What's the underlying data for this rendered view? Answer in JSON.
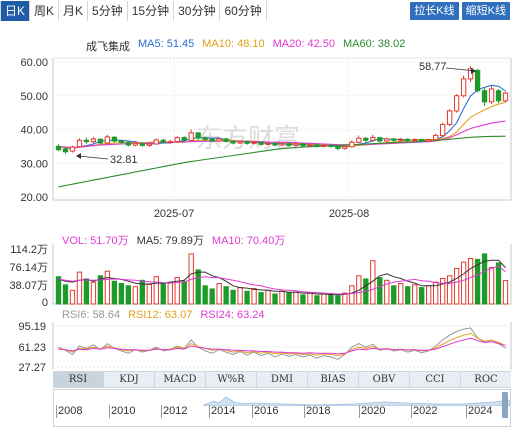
{
  "toolbar": {
    "periods": [
      {
        "label": "日K",
        "active": true
      },
      {
        "label": "周K",
        "active": false
      },
      {
        "label": "月K",
        "active": false
      },
      {
        "label": "5分钟",
        "active": false
      },
      {
        "label": "15分钟",
        "active": false
      },
      {
        "label": "30分钟",
        "active": false
      },
      {
        "label": "60分钟",
        "active": false
      }
    ],
    "right_buttons": [
      "拉长K线",
      "缩短K线"
    ]
  },
  "watermark": "东方财富",
  "main_legend": {
    "stock_name": "成飞集成",
    "items": [
      {
        "label": "MA5: 51.45",
        "color": "#2f6fd6"
      },
      {
        "label": "MA10: 48.10",
        "color": "#e0a11b"
      },
      {
        "label": "MA20: 42.50",
        "color": "#e03ad6"
      },
      {
        "label": "MA60: 38.02",
        "color": "#2e8b2e"
      }
    ]
  },
  "main_axis": {
    "y_ticks": [
      "60.00",
      "50.00",
      "40.00",
      "30.00",
      "20.00"
    ],
    "x_ticks": [
      "2025-07",
      "2025-08"
    ]
  },
  "annotations": {
    "high": "58.77",
    "low": "32.81"
  },
  "volume_legend": {
    "items": [
      {
        "label": "VOL: 51.70万",
        "color": "#e03ad6"
      },
      {
        "label": "MA5: 79.89万",
        "color": "#333333"
      },
      {
        "label": "MA10: 70.40万",
        "color": "#e03ad6"
      }
    ],
    "y_ticks": [
      "114.2万",
      "76.14万",
      "38.07万",
      "0"
    ]
  },
  "rsi_legend": {
    "items": [
      {
        "label": "RSI6: 58.64",
        "color": "#999999"
      },
      {
        "label": "RSI12: 63.07",
        "color": "#e0a11b"
      },
      {
        "label": "RSI24: 63.24",
        "color": "#e03ad6"
      }
    ],
    "y_ticks": [
      "95.19",
      "61.23",
      "27.27"
    ]
  },
  "indicator_tabs": [
    {
      "label": "RSI",
      "active": true
    },
    {
      "label": "KDJ",
      "active": false
    },
    {
      "label": "MACD",
      "active": false
    },
    {
      "label": "W%R",
      "active": false
    },
    {
      "label": "DMI",
      "active": false
    },
    {
      "label": "BIAS",
      "active": false
    },
    {
      "label": "OBV",
      "active": false
    },
    {
      "label": "CCI",
      "active": false
    },
    {
      "label": "ROC",
      "active": false
    }
  ],
  "timeline": {
    "years": [
      "2008",
      "2010",
      "2012",
      "2014",
      "2016",
      "2018",
      "2020",
      "2022",
      "2024"
    ]
  },
  "chart_data": {
    "type": "candlestick",
    "title": "成飞集成",
    "ylim": [
      20,
      60
    ],
    "x_ticks": [
      "2025-07",
      "2025-08"
    ],
    "candles": [
      [
        35.0,
        34.0,
        35.6,
        33.6
      ],
      [
        34.2,
        33.4,
        34.8,
        32.81
      ],
      [
        33.6,
        34.8,
        35.2,
        33.2
      ],
      [
        34.9,
        36.8,
        37.4,
        34.6
      ],
      [
        36.8,
        36.4,
        37.6,
        35.8
      ],
      [
        36.4,
        37.2,
        37.8,
        35.9
      ],
      [
        37.1,
        36.0,
        37.4,
        35.6
      ],
      [
        36.0,
        37.8,
        38.4,
        35.8
      ],
      [
        37.7,
        36.6,
        38.0,
        36.2
      ],
      [
        36.6,
        36.2,
        37.0,
        35.6
      ],
      [
        36.2,
        35.4,
        36.6,
        35.0
      ],
      [
        35.4,
        35.9,
        36.4,
        35.0
      ],
      [
        35.8,
        35.3,
        36.2,
        34.9
      ],
      [
        35.3,
        35.7,
        36.1,
        34.9
      ],
      [
        35.7,
        36.9,
        37.4,
        35.5
      ],
      [
        36.8,
        36.2,
        37.2,
        35.8
      ],
      [
        36.2,
        36.4,
        37.0,
        35.8
      ],
      [
        36.4,
        37.6,
        38.0,
        36.0
      ],
      [
        37.6,
        36.8,
        38.0,
        36.4
      ],
      [
        36.8,
        39.0,
        40.0,
        36.6
      ],
      [
        39.0,
        37.5,
        39.2,
        37.0
      ],
      [
        37.5,
        37.1,
        37.9,
        36.6
      ],
      [
        37.1,
        36.6,
        37.4,
        36.2
      ],
      [
        36.6,
        37.2,
        37.6,
        36.2
      ],
      [
        37.2,
        36.5,
        37.5,
        36.1
      ],
      [
        36.5,
        36.0,
        36.8,
        35.6
      ],
      [
        36.0,
        36.4,
        36.8,
        35.7
      ],
      [
        36.4,
        35.9,
        36.7,
        35.5
      ],
      [
        35.9,
        36.2,
        36.6,
        35.6
      ],
      [
        36.2,
        35.6,
        36.4,
        35.2
      ],
      [
        35.6,
        35.9,
        36.3,
        35.3
      ],
      [
        35.9,
        35.4,
        36.2,
        35.0
      ],
      [
        35.4,
        35.8,
        36.1,
        35.1
      ],
      [
        35.8,
        35.3,
        36.1,
        34.9
      ],
      [
        35.3,
        35.7,
        36.0,
        35.0
      ],
      [
        35.7,
        35.2,
        36.0,
        34.8
      ],
      [
        35.2,
        35.4,
        35.8,
        34.9
      ],
      [
        35.4,
        35.0,
        35.7,
        34.6
      ],
      [
        35.0,
        35.3,
        35.6,
        34.7
      ],
      [
        35.3,
        35.0,
        35.6,
        34.6
      ],
      [
        35.0,
        34.4,
        35.2,
        33.8
      ],
      [
        34.4,
        34.9,
        35.3,
        34.0
      ],
      [
        34.9,
        36.2,
        36.8,
        34.7
      ],
      [
        36.2,
        37.4,
        38.2,
        36.0
      ],
      [
        37.4,
        36.8,
        37.8,
        36.2
      ],
      [
        36.8,
        37.6,
        38.4,
        36.5
      ],
      [
        37.6,
        36.6,
        37.8,
        36.2
      ],
      [
        36.6,
        37.2,
        37.6,
        36.2
      ],
      [
        37.2,
        36.8,
        37.5,
        36.4
      ],
      [
        36.8,
        37.1,
        37.5,
        36.5
      ],
      [
        37.1,
        36.7,
        37.4,
        36.3
      ],
      [
        36.7,
        37.0,
        37.4,
        36.3
      ],
      [
        37.0,
        36.6,
        37.3,
        36.2
      ],
      [
        36.6,
        37.0,
        37.3,
        36.3
      ],
      [
        37.0,
        38.2,
        38.8,
        36.8
      ],
      [
        38.2,
        41.5,
        42.0,
        38.0
      ],
      [
        41.5,
        45.5,
        46.0,
        41.0
      ],
      [
        45.5,
        50.0,
        50.5,
        45.0
      ],
      [
        50.0,
        55.0,
        56.0,
        49.5
      ],
      [
        55.0,
        58.0,
        58.77,
        54.0
      ],
      [
        57.5,
        51.5,
        58.0,
        51.0
      ],
      [
        51.5,
        48.2,
        52.5,
        47.0
      ],
      [
        48.2,
        52.0,
        53.0,
        47.5
      ],
      [
        51.5,
        48.5,
        52.0,
        47.8
      ],
      [
        48.5,
        50.8,
        51.2,
        48.0
      ]
    ],
    "ma": [
      {
        "name": "MA5",
        "color": "#2f6fd6",
        "values": [
          35.0,
          34.5,
          34.3,
          34.9,
          35.2,
          35.7,
          36.5,
          36.8,
          36.8,
          36.8,
          36.6,
          36.4,
          35.9,
          35.7,
          35.8,
          36.0,
          36.0,
          36.5,
          36.6,
          37.4,
          37.5,
          37.6,
          37.4,
          37.5,
          36.9,
          36.7,
          36.4,
          36.3,
          36.2,
          36.0,
          35.9,
          35.8,
          35.8,
          35.6,
          35.6,
          35.5,
          35.5,
          35.3,
          35.3,
          35.2,
          35.0,
          34.9,
          35.1,
          35.6,
          36.0,
          36.6,
          37.3,
          37.2,
          37.0,
          37.1,
          36.9,
          36.9,
          36.9,
          36.9,
          37.1,
          37.8,
          39.6,
          42.0,
          46.2,
          50.0,
          51.7,
          52.5,
          53.1,
          52.8,
          51.45
        ]
      },
      {
        "name": "MA10",
        "color": "#e0a11b",
        "values": [
          35.0,
          34.6,
          34.4,
          34.8,
          35.0,
          35.3,
          35.6,
          35.8,
          36.0,
          36.1,
          36.1,
          36.1,
          36.1,
          36.2,
          36.3,
          36.3,
          36.2,
          36.2,
          36.2,
          36.6,
          36.8,
          36.9,
          36.8,
          36.9,
          36.9,
          36.8,
          36.6,
          36.6,
          36.5,
          36.4,
          36.3,
          36.2,
          36.1,
          36.0,
          35.9,
          35.8,
          35.7,
          35.6,
          35.5,
          35.4,
          35.3,
          35.2,
          35.2,
          35.3,
          35.4,
          35.6,
          35.9,
          36.1,
          36.3,
          36.5,
          36.8,
          37.0,
          37.0,
          37.0,
          37.0,
          37.3,
          37.9,
          39.3,
          41.5,
          43.6,
          44.8,
          45.8,
          46.8,
          47.5,
          48.1
        ]
      },
      {
        "name": "MA20",
        "color": "#e03ad6",
        "values": [
          35.0,
          34.8,
          34.6,
          34.8,
          35.0,
          35.2,
          35.4,
          35.5,
          35.6,
          35.7,
          35.8,
          35.9,
          35.9,
          36.0,
          36.1,
          36.2,
          36.2,
          36.3,
          36.3,
          36.4,
          36.5,
          36.5,
          36.5,
          36.6,
          36.6,
          36.6,
          36.5,
          36.5,
          36.4,
          36.4,
          36.3,
          36.3,
          36.2,
          36.2,
          36.1,
          36.0,
          35.9,
          35.8,
          35.7,
          35.6,
          35.5,
          35.5,
          35.5,
          35.5,
          35.6,
          35.6,
          35.7,
          35.8,
          35.9,
          36.0,
          36.1,
          36.2,
          36.3,
          36.4,
          36.6,
          37.0,
          37.6,
          38.4,
          39.4,
          40.3,
          40.9,
          41.4,
          41.9,
          42.2,
          42.5
        ]
      },
      {
        "name": "MA60",
        "color": "#2e8b2e",
        "values": [
          23.0,
          23.4,
          23.8,
          24.2,
          24.6,
          25.0,
          25.4,
          25.8,
          26.2,
          26.6,
          27.0,
          27.4,
          27.8,
          28.2,
          28.6,
          29.0,
          29.4,
          29.8,
          30.2,
          30.5,
          30.8,
          31.1,
          31.4,
          31.7,
          32.0,
          32.3,
          32.6,
          32.9,
          33.2,
          33.5,
          33.8,
          34.1,
          34.3,
          34.5,
          34.7,
          34.8,
          34.9,
          35.0,
          35.1,
          35.2,
          35.3,
          35.4,
          35.5,
          35.6,
          35.7,
          35.8,
          35.9,
          36.0,
          36.1,
          36.2,
          36.3,
          36.4,
          36.5,
          36.6,
          36.7,
          36.9,
          37.1,
          37.3,
          37.5,
          37.7,
          37.8,
          37.9,
          37.95,
          38.0,
          38.02
        ]
      }
    ],
    "volume": {
      "unit": "万",
      "values": [
        60,
        42,
        30,
        70,
        55,
        48,
        62,
        72,
        50,
        45,
        40,
        38,
        52,
        43,
        60,
        44,
        46,
        58,
        50,
        110,
        75,
        40,
        33,
        45,
        38,
        30,
        36,
        28,
        34,
        25,
        30,
        22,
        28,
        24,
        26,
        20,
        24,
        18,
        22,
        20,
        18,
        24,
        40,
        62,
        55,
        95,
        58,
        52,
        40,
        45,
        38,
        42,
        36,
        40,
        48,
        56,
        62,
        78,
        92,
        100,
        98,
        110,
        80,
        90,
        51.7
      ],
      "ma5": [
        55,
        50,
        48,
        52,
        54,
        50,
        55,
        58,
        56,
        54,
        50,
        46,
        44,
        44,
        46,
        46,
        48,
        50,
        52,
        66,
        70,
        70,
        62,
        58,
        50,
        40,
        36,
        35,
        32,
        31,
        30,
        28,
        28,
        26,
        26,
        24,
        24,
        22,
        22,
        21,
        20,
        21,
        24,
        30,
        40,
        50,
        62,
        66,
        60,
        56,
        50,
        46,
        40,
        40,
        40,
        44,
        48,
        56,
        66,
        78,
        86,
        94,
        96,
        96,
        79.89
      ],
      "ma10": [
        55,
        52,
        50,
        52,
        53,
        52,
        53,
        54,
        55,
        54,
        53,
        52,
        50,
        49,
        48,
        47,
        46,
        47,
        48,
        54,
        58,
        60,
        58,
        58,
        55,
        52,
        49,
        45,
        42,
        40,
        36,
        33,
        31,
        30,
        29,
        27,
        26,
        25,
        24,
        23,
        22,
        22,
        23,
        25,
        28,
        32,
        38,
        44,
        48,
        50,
        52,
        54,
        51,
        50,
        47,
        46,
        45,
        48,
        52,
        58,
        64,
        72,
        78,
        84,
        70.4
      ],
      "ylim": [
        0,
        114.2
      ]
    },
    "rsi": {
      "ylim": [
        27.27,
        95.19
      ],
      "rsi6": [
        60,
        55,
        48,
        62,
        58,
        64,
        56,
        66,
        58,
        54,
        50,
        56,
        52,
        55,
        60,
        54,
        56,
        62,
        58,
        72,
        60,
        54,
        50,
        56,
        52,
        48,
        53,
        47,
        52,
        46,
        50,
        44,
        49,
        45,
        48,
        44,
        47,
        42,
        46,
        44,
        40,
        48,
        60,
        66,
        60,
        65,
        55,
        58,
        54,
        56,
        52,
        55,
        51,
        54,
        62,
        72,
        80,
        86,
        90,
        92,
        76,
        68,
        72,
        66,
        58.64
      ],
      "rsi12": [
        58,
        56,
        52,
        58,
        57,
        60,
        57,
        62,
        59,
        56,
        54,
        56,
        54,
        55,
        58,
        56,
        57,
        60,
        58,
        66,
        61,
        58,
        55,
        57,
        55,
        52,
        54,
        51,
        53,
        50,
        52,
        49,
        51,
        49,
        50,
        48,
        49,
        47,
        49,
        48,
        46,
        49,
        56,
        60,
        58,
        61,
        57,
        58,
        56,
        57,
        55,
        56,
        54,
        55,
        59,
        65,
        71,
        76,
        80,
        83,
        75,
        70,
        72,
        68,
        63.07
      ],
      "rsi24": [
        57,
        56,
        54,
        57,
        56,
        58,
        57,
        59,
        58,
        57,
        56,
        56,
        55,
        55,
        57,
        56,
        56,
        58,
        57,
        62,
        60,
        58,
        57,
        57,
        56,
        55,
        55,
        54,
        54,
        53,
        53,
        52,
        52,
        51,
        51,
        50,
        51,
        50,
        50,
        50,
        49,
        50,
        54,
        57,
        56,
        58,
        57,
        57,
        56,
        56,
        56,
        56,
        55,
        55,
        57,
        61,
        65,
        69,
        72,
        75,
        71,
        68,
        69,
        66,
        63.24
      ]
    }
  }
}
